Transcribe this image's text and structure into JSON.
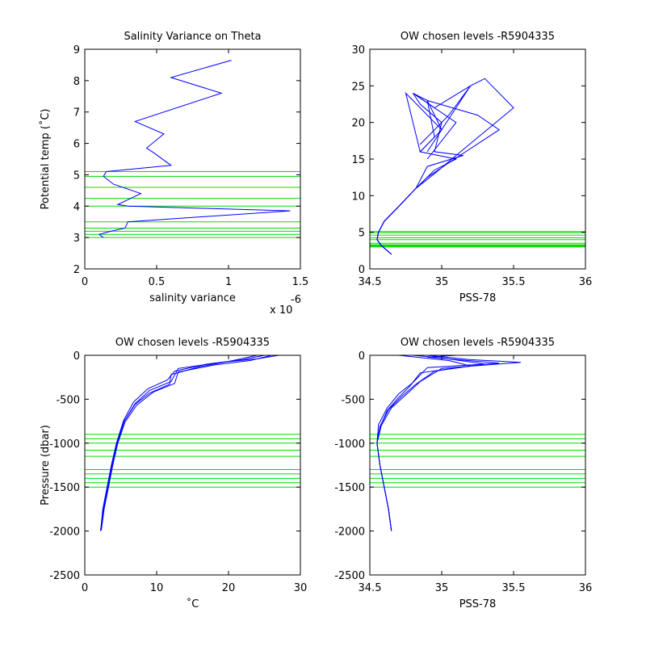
{
  "colors": {
    "profile": "#0000ff",
    "level": "#00dd00",
    "axes": "#000000"
  },
  "chart_data": [
    {
      "type": "line",
      "title": "Salinity Variance on Theta",
      "xlabel": "salinity variance",
      "ylabel": "Potential temp (˚C)",
      "x_exponent": "x 10",
      "x_exponent_power": "-6",
      "xlim": [
        0,
        1.5
      ],
      "ylim": [
        2,
        9
      ],
      "xticks": [
        0,
        0.5,
        1,
        1.5
      ],
      "xticklabels": [
        "0",
        "0.5",
        "1",
        "1.5"
      ],
      "yticks": [
        2,
        3,
        4,
        5,
        6,
        7,
        8,
        9
      ],
      "yticklabels": [
        "2",
        "3",
        "4",
        "5",
        "6",
        "7",
        "8",
        "9"
      ],
      "grid": false,
      "series": [
        {
          "x": [
            1.02,
            0.6,
            0.95,
            0.35,
            0.55,
            0.43,
            0.48,
            0.6,
            0.15,
            0.13,
            0.2,
            0.39,
            0.23,
            0.3,
            1.43,
            0.3,
            0.28,
            0.18,
            0.1,
            0.13
          ],
          "y": [
            8.65,
            8.1,
            7.6,
            6.7,
            6.3,
            5.85,
            5.7,
            5.3,
            5.1,
            4.95,
            4.7,
            4.4,
            4.05,
            4.0,
            3.85,
            3.5,
            3.3,
            3.2,
            3.1,
            3.0
          ]
        }
      ],
      "chosen_levels": [
        5.1,
        4.95,
        4.6,
        4.25,
        4.0,
        3.5,
        3.3,
        3.2,
        3.1,
        3.0
      ]
    },
    {
      "type": "line",
      "title": "OW chosen levels -R5904335",
      "xlabel": "PSS-78",
      "ylabel": "",
      "xlim": [
        34.5,
        36
      ],
      "ylim": [
        0,
        30
      ],
      "xticks": [
        34.5,
        35,
        35.5,
        36
      ],
      "xticklabels": [
        "34.5",
        "35",
        "35.5",
        "36"
      ],
      "yticks": [
        0,
        5,
        10,
        15,
        20,
        25,
        30
      ],
      "yticklabels": [
        "0",
        "5",
        "10",
        "15",
        "20",
        "25",
        "30"
      ],
      "grid": false,
      "series": [
        {
          "x": [
            34.65,
            34.58,
            34.55,
            34.56,
            34.6,
            34.7,
            34.82,
            34.95,
            35.1,
            35.5,
            35.3,
            35.2,
            34.9
          ],
          "y": [
            2,
            3.2,
            4,
            5,
            6.5,
            8.5,
            11,
            13,
            15.5,
            22,
            26,
            25,
            16
          ]
        },
        {
          "x": [
            34.65,
            34.58,
            34.55,
            34.56,
            34.6,
            34.7,
            34.82,
            34.9,
            35.05,
            35.4,
            35.25,
            34.9,
            34.95,
            34.85,
            34.75,
            34.85,
            35.0
          ],
          "y": [
            2,
            3.2,
            4,
            5,
            6.5,
            8.5,
            11,
            12.5,
            14.5,
            19,
            21,
            23,
            18,
            16,
            24,
            22,
            19
          ]
        },
        {
          "x": [
            34.65,
            34.58,
            34.55,
            34.56,
            34.6,
            34.7,
            34.82,
            34.95,
            35.1,
            34.85,
            35.0,
            34.9,
            34.8,
            34.95,
            35.2,
            35.05,
            34.85
          ],
          "y": [
            2,
            3.2,
            4,
            5,
            6.5,
            8.5,
            11,
            13.5,
            15,
            16,
            19,
            23,
            24,
            22,
            25,
            21,
            17
          ]
        },
        {
          "x": [
            34.65,
            34.58,
            34.55,
            34.56,
            34.6,
            34.7,
            34.82,
            34.9,
            35.15,
            34.95,
            35.0,
            34.85,
            34.8,
            35.1,
            34.9
          ],
          "y": [
            2,
            3.2,
            4,
            5,
            6.5,
            8.5,
            11,
            14,
            15.5,
            16,
            20,
            22.5,
            24,
            20,
            15
          ]
        }
      ],
      "chosen_levels": [
        5.1,
        4.95,
        4.6,
        4.25,
        4.0,
        3.5,
        3.3,
        3.2,
        3.1,
        3.0
      ]
    },
    {
      "type": "line",
      "title": "OW chosen levels -R5904335",
      "xlabel": "˚C",
      "ylabel": "Pressure (dbar)",
      "xlim": [
        0,
        30
      ],
      "ylim": [
        -2500,
        0
      ],
      "xticks": [
        0,
        10,
        20,
        30
      ],
      "xticklabels": [
        "0",
        "10",
        "20",
        "30"
      ],
      "yticks": [
        -2500,
        -2000,
        -1500,
        -1000,
        -500,
        0
      ],
      "yticklabels": [
        "-2500",
        "-2000",
        "-1500",
        "-1000",
        "-500",
        "0"
      ],
      "grid": false,
      "series": [
        {
          "x": [
            27,
            24,
            19,
            13,
            12,
            9,
            7,
            5.5,
            4.5,
            3.8,
            3.2,
            2.6,
            2.2
          ],
          "y": [
            0,
            -40,
            -80,
            -150,
            -300,
            -400,
            -550,
            -750,
            -1000,
            -1250,
            -1500,
            -1750,
            -2000
          ]
        },
        {
          "x": [
            26,
            23,
            18,
            13,
            12.5,
            9.5,
            7.2,
            5.6,
            4.6,
            3.9,
            3.3,
            2.7,
            2.3
          ],
          "y": [
            0,
            -60,
            -110,
            -190,
            -320,
            -420,
            -570,
            -760,
            -1000,
            -1250,
            -1500,
            -1750,
            -1990
          ]
        },
        {
          "x": [
            25,
            22,
            17,
            12.5,
            11.5,
            8.8,
            6.8,
            5.4,
            4.4,
            3.7,
            3.1,
            2.5,
            2.2
          ],
          "y": [
            0,
            -50,
            -100,
            -180,
            -280,
            -380,
            -530,
            -740,
            -1000,
            -1250,
            -1500,
            -1750,
            -2000
          ]
        },
        {
          "x": [
            24,
            20,
            16,
            12,
            11.8,
            9,
            7,
            5.5,
            4.5,
            3.8,
            3.2,
            2.6,
            2.2
          ],
          "y": [
            0,
            -70,
            -130,
            -220,
            -330,
            -430,
            -560,
            -750,
            -1000,
            -1250,
            -1500,
            -1750,
            -2000
          ]
        }
      ],
      "chosen_levels": [
        -900,
        -950,
        -1000,
        -1080,
        -1150,
        -1300,
        -1350,
        -1400,
        -1450,
        -1500
      ]
    },
    {
      "type": "line",
      "title": "OW chosen levels -R5904335",
      "xlabel": "PSS-78",
      "ylabel": "",
      "xlim": [
        34.5,
        36
      ],
      "ylim": [
        -2500,
        0
      ],
      "xticks": [
        34.5,
        35,
        35.5,
        36
      ],
      "xticklabels": [
        "34.5",
        "35",
        "35.5",
        "36"
      ],
      "yticks": [
        -2500,
        -2000,
        -1500,
        -1000,
        -500,
        0
      ],
      "yticklabels": [
        "-2500",
        "-2000",
        "-1500",
        "-1000",
        "-500",
        "0"
      ],
      "grid": false,
      "series": [
        {
          "x": [
            34.9,
            35.2,
            35.55,
            35.0,
            34.85,
            34.75,
            34.65,
            34.58,
            34.55,
            34.57,
            34.6,
            34.63,
            34.65
          ],
          "y": [
            0,
            -50,
            -80,
            -150,
            -300,
            -450,
            -600,
            -800,
            -1000,
            -1250,
            -1500,
            -1750,
            -2000
          ]
        },
        {
          "x": [
            34.8,
            35.0,
            35.3,
            34.95,
            34.82,
            34.72,
            34.63,
            34.57,
            34.55,
            34.57,
            34.6,
            34.63,
            34.65
          ],
          "y": [
            0,
            -30,
            -100,
            -180,
            -330,
            -470,
            -620,
            -810,
            -1000,
            -1250,
            -1500,
            -1750,
            -1990
          ]
        },
        {
          "x": [
            35.1,
            34.9,
            35.4,
            34.9,
            34.8,
            34.7,
            34.62,
            34.56,
            34.55,
            34.57,
            34.6,
            34.63,
            34.65
          ],
          "y": [
            0,
            -20,
            -90,
            -140,
            -310,
            -440,
            -600,
            -790,
            -1000,
            -1250,
            -1500,
            -1750,
            -2000
          ]
        },
        {
          "x": [
            34.7,
            35.05,
            35.2,
            34.85,
            34.78,
            34.7,
            34.62,
            34.57,
            34.55,
            34.57,
            34.6,
            34.63,
            34.65
          ],
          "y": [
            0,
            -60,
            -120,
            -200,
            -350,
            -480,
            -630,
            -820,
            -1000,
            -1250,
            -1500,
            -1750,
            -2000
          ]
        }
      ],
      "chosen_levels": [
        -900,
        -950,
        -1000,
        -1080,
        -1150,
        -1300,
        -1350,
        -1400,
        -1450,
        -1500
      ]
    }
  ]
}
